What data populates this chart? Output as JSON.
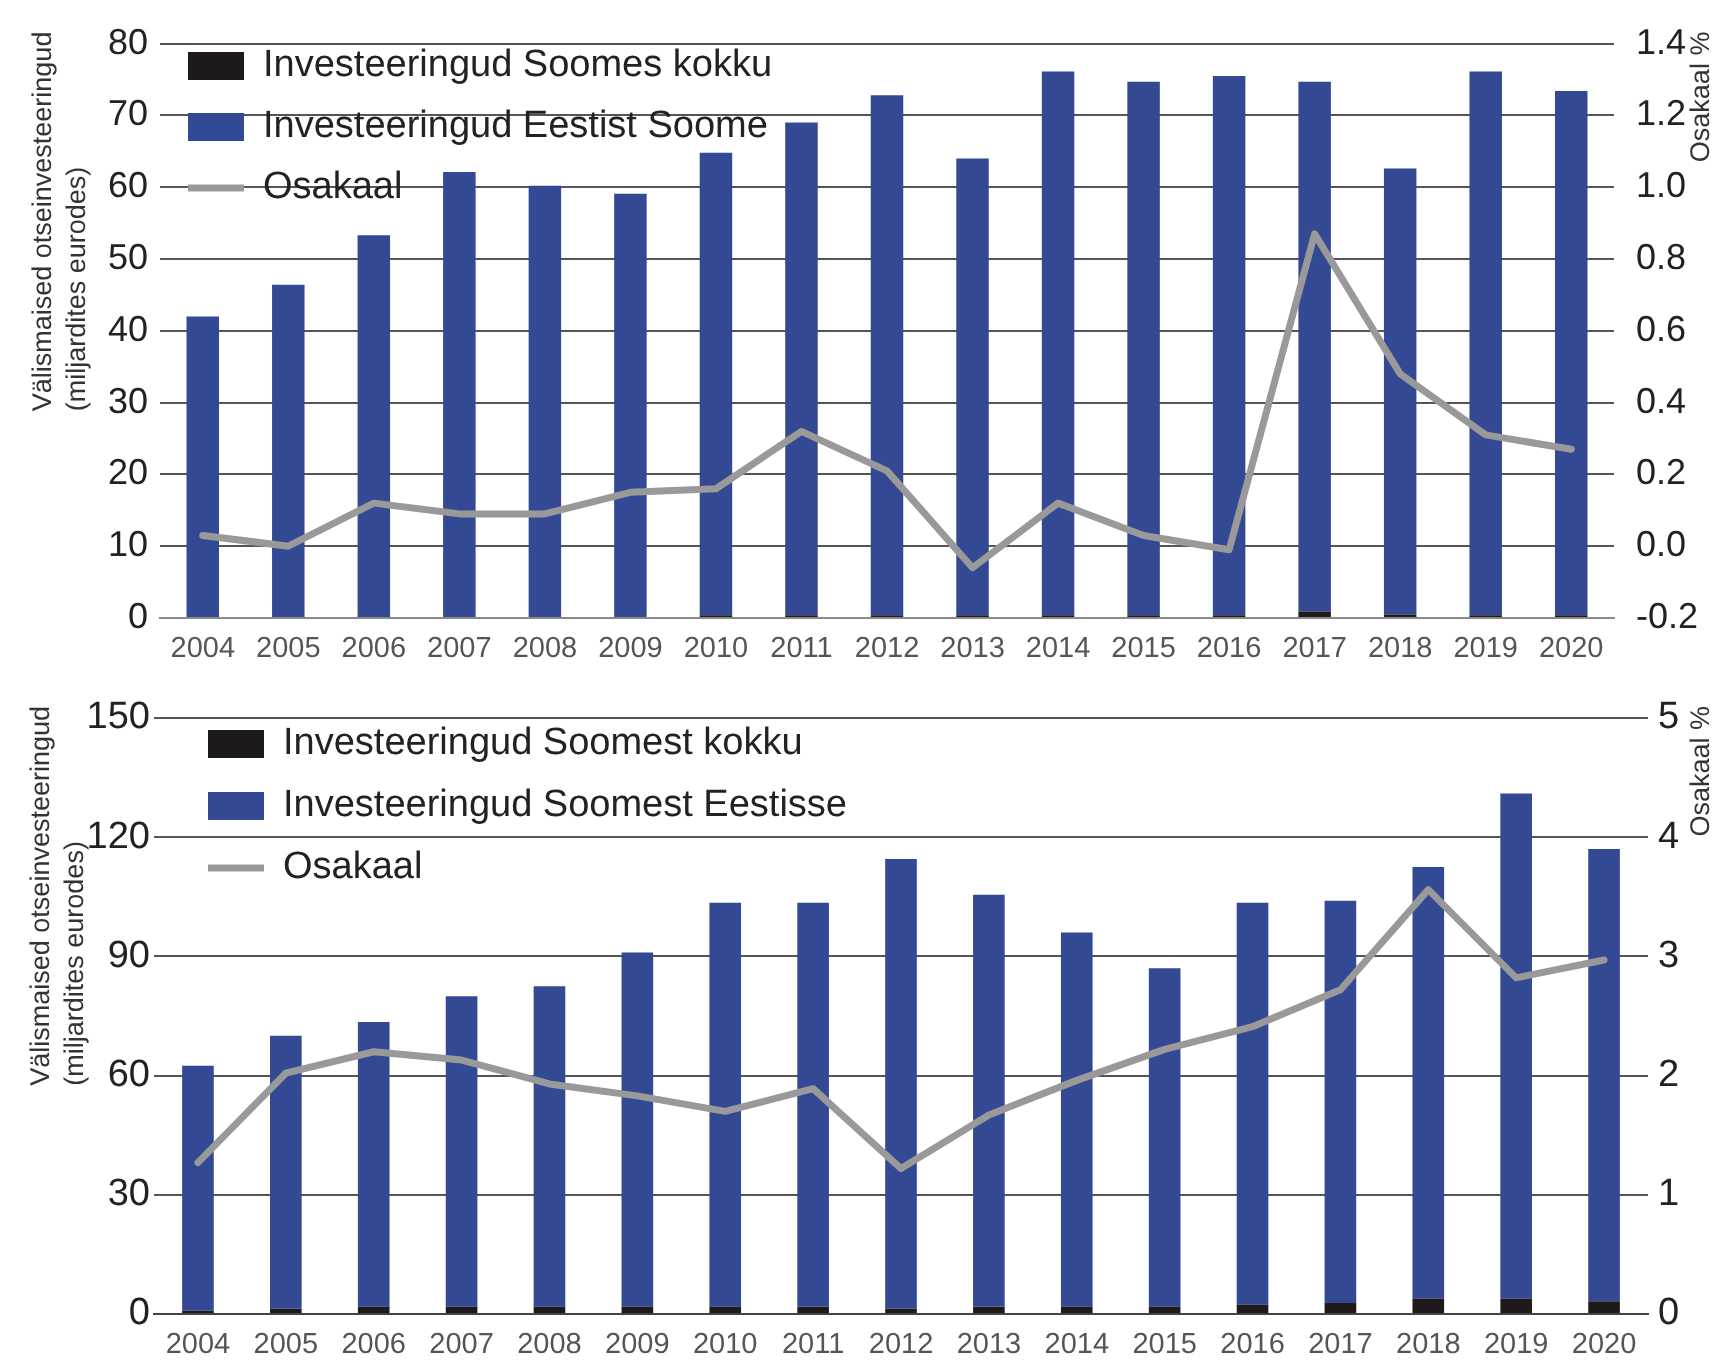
{
  "chart_data": [
    {
      "type": "bar",
      "stacked": true,
      "legend": "top left",
      "grid": "y",
      "categories": [
        "2004",
        "2005",
        "2006",
        "2007",
        "2008",
        "2009",
        "2010",
        "2011",
        "2012",
        "2013",
        "2014",
        "2015",
        "2016",
        "2017",
        "2018",
        "2019",
        "2020"
      ],
      "series": [
        {
          "name": "Investeeringud Soomes kokku",
          "color": "#1e1a1b",
          "values": [
            null,
            null,
            null,
            null,
            null,
            null,
            0.4,
            0.4,
            0.4,
            0.4,
            0.4,
            0.4,
            0.4,
            0.9,
            0.5,
            0.4,
            0.4
          ]
        },
        {
          "name": "Investeeringud Eestist Soome",
          "color": "#334994",
          "values": [
            42,
            46.4,
            53.3,
            62.1,
            60.2,
            59.1,
            64.4,
            68.6,
            72.4,
            63.6,
            75.7,
            74.3,
            75.1,
            73.8,
            62.1,
            75.7,
            73
          ]
        },
        {
          "name": "Osakaal",
          "type": "line",
          "axis": "y2",
          "color": "#999999",
          "values": [
            0.03,
            0.0,
            0.12,
            0.09,
            0.09,
            0.15,
            0.16,
            0.32,
            0.21,
            -0.06,
            0.12,
            0.03,
            -0.01,
            0.87,
            0.48,
            0.31,
            0.27
          ]
        }
      ],
      "ylabel": "Välismaised otseinvesteeringud\n(miljardites eurodes)",
      "y2label": "Osakaal %",
      "ylim": [
        0,
        80
      ],
      "yticks": [
        0,
        10,
        20,
        30,
        40,
        50,
        60,
        70,
        80
      ],
      "y2lim": [
        -0.2,
        1.4
      ],
      "y2ticks": [
        -0.2,
        {
          "value": 0,
          "label": "0.0"
        },
        0.2,
        0.4,
        0.6,
        0.8,
        {
          "value": 1,
          "label": "1.0"
        },
        1.2,
        1.4
      ]
    },
    {
      "type": "bar",
      "stacked": true,
      "legend": "top left",
      "grid": "y",
      "categories": [
        "2004",
        "2005",
        "2006",
        "2007",
        "2008",
        "2009",
        "2010",
        "2011",
        "2012",
        "2013",
        "2014",
        "2015",
        "2016",
        "2017",
        "2018",
        "2019",
        "2020"
      ],
      "series": [
        {
          "name": "Investeeringud Soomest kokku",
          "color": "#1e1a1b",
          "values": [
            0.8,
            1.3,
            1.8,
            1.8,
            1.8,
            1.8,
            1.8,
            1.8,
            1.3,
            1.8,
            1.8,
            1.8,
            2.3,
            2.8,
            3.9,
            3.9,
            3.2
          ]
        },
        {
          "name": "Investeeringud Soomest Eestisse",
          "color": "#334994",
          "values": [
            61.7,
            68.7,
            71.7,
            78.2,
            80.7,
            89.2,
            101.7,
            101.7,
            113.2,
            103.7,
            94.2,
            85.2,
            101.2,
            101.2,
            108.6,
            127.1,
            113.8
          ]
        },
        {
          "name": "Osakaal",
          "type": "line",
          "axis": "y2",
          "color": "#999999",
          "values": [
            1.27,
            2.02,
            2.2,
            2.13,
            1.93,
            1.83,
            1.7,
            1.89,
            1.22,
            1.67,
            1.96,
            2.22,
            2.41,
            2.72,
            3.56,
            2.82,
            2.97
          ]
        }
      ],
      "ylabel": "Välismaised otseinvesteeringud\n(miljardites eurodes)",
      "y2label": "Osakaal %",
      "ylim": [
        0,
        150
      ],
      "yticks": [
        0,
        30,
        60,
        90,
        120,
        150
      ],
      "y2lim": [
        0,
        5
      ],
      "y2ticks": [
        0,
        1,
        2,
        3,
        4,
        5
      ]
    }
  ]
}
